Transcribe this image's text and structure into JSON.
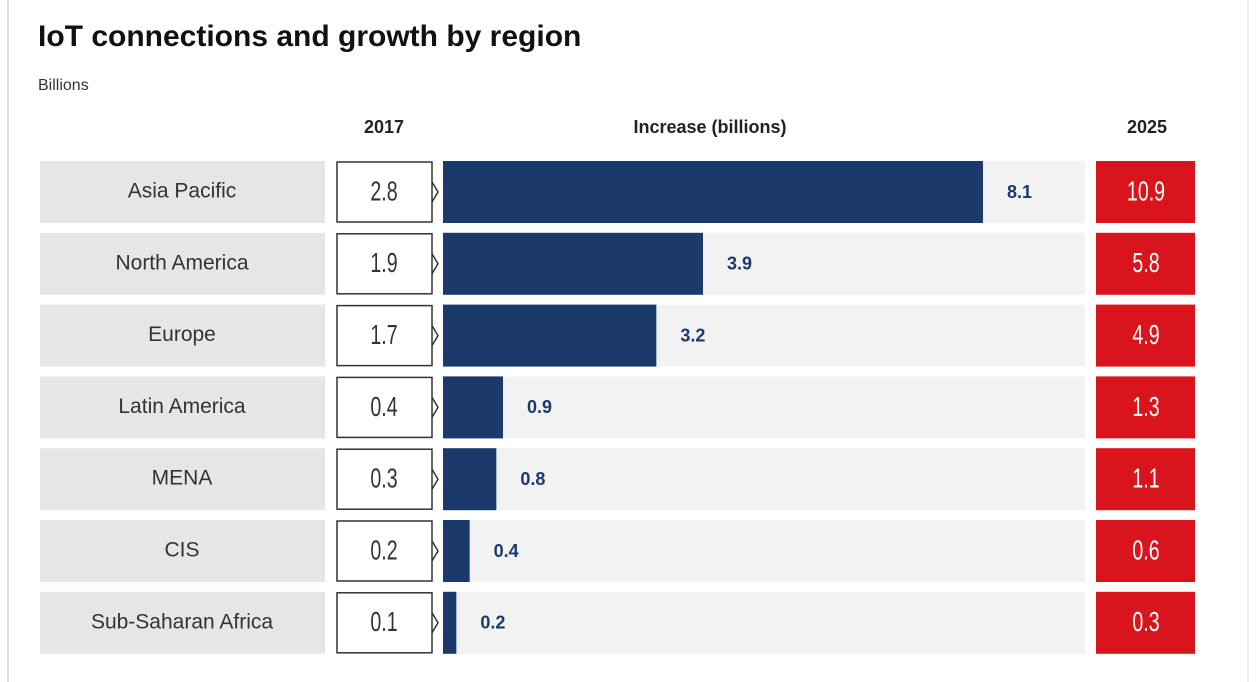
{
  "chart_data": {
    "type": "bar",
    "title": "IoT connections and growth by region",
    "subtitle": "Billions",
    "categories": [
      "Asia Pacific",
      "North America",
      "Europe",
      "Latin America",
      "MENA",
      "CIS",
      "Sub-Saharan Africa"
    ],
    "series": [
      {
        "name": "2017",
        "color": "#ffffff",
        "values": [
          2.8,
          1.9,
          1.7,
          0.4,
          0.3,
          0.2,
          0.1
        ]
      },
      {
        "name": "Increase (billions)",
        "color": "#1b3a6b",
        "values": [
          8.1,
          3.9,
          3.2,
          0.9,
          0.8,
          0.4,
          0.2
        ]
      },
      {
        "name": "2025",
        "color": "#d9141c",
        "values": [
          10.9,
          5.8,
          4.9,
          1.3,
          1.1,
          0.6,
          0.3
        ]
      }
    ]
  }
}
